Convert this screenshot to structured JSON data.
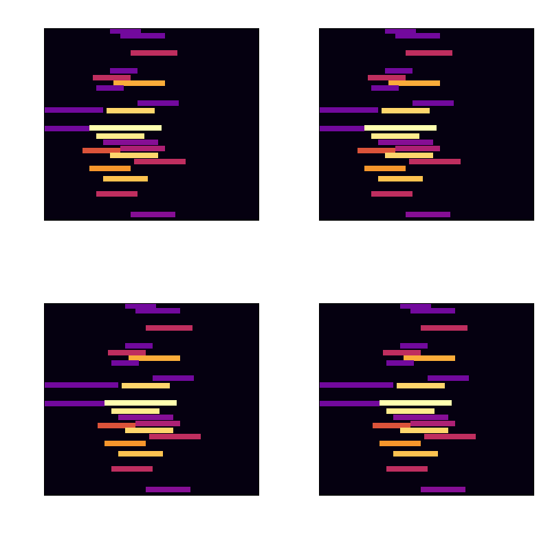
{
  "chart_data": [
    {
      "type": "heatmap",
      "xlim": [
        0,
        312
      ],
      "ylim": [
        0,
        279
      ],
      "tick_labels": false,
      "zlim": [
        0,
        1
      ],
      "cells": [
        {
          "x1": 96,
          "x2": 141,
          "y1": 0,
          "y2": 8,
          "value": 0.3
        },
        {
          "x1": 111,
          "x2": 176,
          "y1": 7,
          "y2": 15,
          "value": 0.3
        },
        {
          "x1": 126,
          "x2": 194,
          "y1": 32,
          "y2": 40,
          "value": 0.5
        },
        {
          "x1": 96,
          "x2": 136,
          "y1": 58,
          "y2": 66,
          "value": 0.3
        },
        {
          "x1": 71,
          "x2": 126,
          "y1": 68,
          "y2": 76,
          "value": 0.5
        },
        {
          "x1": 101,
          "x2": 176,
          "y1": 76,
          "y2": 84,
          "value": 0.8
        },
        {
          "x1": 76,
          "x2": 116,
          "y1": 83,
          "y2": 91,
          "value": 0.3
        },
        {
          "x1": 136,
          "x2": 196,
          "y1": 105,
          "y2": 113,
          "value": 0.3
        },
        {
          "x1": 0,
          "x2": 86,
          "y1": 115,
          "y2": 123,
          "value": 0.3
        },
        {
          "x1": 91,
          "x2": 161,
          "y1": 116,
          "y2": 124,
          "value": 0.9
        },
        {
          "x1": 66,
          "x2": 171,
          "y1": 141,
          "y2": 149,
          "value": 1
        },
        {
          "x1": 0,
          "x2": 66,
          "y1": 142,
          "y2": 150,
          "value": 0.3
        },
        {
          "x1": 76,
          "x2": 146,
          "y1": 153,
          "y2": 161,
          "value": 0.95
        },
        {
          "x1": 86,
          "x2": 166,
          "y1": 162,
          "y2": 170,
          "value": 0.35
        },
        {
          "x1": 111,
          "x2": 176,
          "y1": 171,
          "y2": 179,
          "value": 0.45
        },
        {
          "x1": 56,
          "x2": 111,
          "y1": 174,
          "y2": 182,
          "value": 0.6
        },
        {
          "x1": 96,
          "x2": 166,
          "y1": 181,
          "y2": 189,
          "value": 0.9
        },
        {
          "x1": 131,
          "x2": 206,
          "y1": 190,
          "y2": 198,
          "value": 0.5
        },
        {
          "x1": 66,
          "x2": 126,
          "y1": 200,
          "y2": 208,
          "value": 0.75
        },
        {
          "x1": 86,
          "x2": 151,
          "y1": 215,
          "y2": 223,
          "value": 0.85
        },
        {
          "x1": 76,
          "x2": 136,
          "y1": 237,
          "y2": 245,
          "value": 0.5
        },
        {
          "x1": 126,
          "x2": 191,
          "y1": 267,
          "y2": 275,
          "value": 0.35
        }
      ]
    },
    {
      "type": "heatmap",
      "xlim": [
        0,
        312
      ],
      "ylim": [
        0,
        279
      ],
      "tick_labels": false,
      "zlim": [
        0,
        1
      ],
      "cells": [
        {
          "x1": 96,
          "x2": 141,
          "y1": 0,
          "y2": 8,
          "value": 0.3
        },
        {
          "x1": 111,
          "x2": 176,
          "y1": 7,
          "y2": 15,
          "value": 0.3
        },
        {
          "x1": 126,
          "x2": 194,
          "y1": 32,
          "y2": 40,
          "value": 0.5
        },
        {
          "x1": 96,
          "x2": 136,
          "y1": 58,
          "y2": 66,
          "value": 0.3
        },
        {
          "x1": 71,
          "x2": 126,
          "y1": 68,
          "y2": 76,
          "value": 0.5
        },
        {
          "x1": 101,
          "x2": 176,
          "y1": 76,
          "y2": 84,
          "value": 0.8
        },
        {
          "x1": 76,
          "x2": 116,
          "y1": 83,
          "y2": 91,
          "value": 0.3
        },
        {
          "x1": 136,
          "x2": 196,
          "y1": 105,
          "y2": 113,
          "value": 0.3
        },
        {
          "x1": 0,
          "x2": 86,
          "y1": 115,
          "y2": 123,
          "value": 0.3
        },
        {
          "x1": 91,
          "x2": 161,
          "y1": 116,
          "y2": 124,
          "value": 0.9
        },
        {
          "x1": 66,
          "x2": 171,
          "y1": 141,
          "y2": 149,
          "value": 1
        },
        {
          "x1": 0,
          "x2": 66,
          "y1": 142,
          "y2": 150,
          "value": 0.3
        },
        {
          "x1": 76,
          "x2": 146,
          "y1": 153,
          "y2": 161,
          "value": 0.95
        },
        {
          "x1": 86,
          "x2": 166,
          "y1": 162,
          "y2": 170,
          "value": 0.35
        },
        {
          "x1": 111,
          "x2": 176,
          "y1": 171,
          "y2": 179,
          "value": 0.45
        },
        {
          "x1": 56,
          "x2": 111,
          "y1": 174,
          "y2": 182,
          "value": 0.6
        },
        {
          "x1": 96,
          "x2": 166,
          "y1": 181,
          "y2": 189,
          "value": 0.9
        },
        {
          "x1": 131,
          "x2": 206,
          "y1": 190,
          "y2": 198,
          "value": 0.5
        },
        {
          "x1": 66,
          "x2": 126,
          "y1": 200,
          "y2": 208,
          "value": 0.75
        },
        {
          "x1": 86,
          "x2": 151,
          "y1": 215,
          "y2": 223,
          "value": 0.85
        },
        {
          "x1": 76,
          "x2": 136,
          "y1": 237,
          "y2": 245,
          "value": 0.5
        },
        {
          "x1": 126,
          "x2": 191,
          "y1": 267,
          "y2": 275,
          "value": 0.35
        }
      ]
    },
    {
      "type": "heatmap",
      "xlim": [
        0,
        312
      ],
      "ylim": [
        0,
        279
      ],
      "tick_labels": false,
      "zlim": [
        0,
        1
      ],
      "cells": [
        {
          "x1": 118,
          "x2": 163,
          "y1": 0,
          "y2": 8,
          "value": 0.3
        },
        {
          "x1": 133,
          "x2": 198,
          "y1": 7,
          "y2": 15,
          "value": 0.3
        },
        {
          "x1": 148,
          "x2": 216,
          "y1": 32,
          "y2": 40,
          "value": 0.5
        },
        {
          "x1": 118,
          "x2": 158,
          "y1": 58,
          "y2": 66,
          "value": 0.3
        },
        {
          "x1": 93,
          "x2": 148,
          "y1": 68,
          "y2": 76,
          "value": 0.5
        },
        {
          "x1": 123,
          "x2": 198,
          "y1": 76,
          "y2": 84,
          "value": 0.8
        },
        {
          "x1": 98,
          "x2": 138,
          "y1": 83,
          "y2": 91,
          "value": 0.3
        },
        {
          "x1": 158,
          "x2": 218,
          "y1": 105,
          "y2": 113,
          "value": 0.3
        },
        {
          "x1": 0,
          "x2": 108,
          "y1": 115,
          "y2": 123,
          "value": 0.3
        },
        {
          "x1": 113,
          "x2": 183,
          "y1": 116,
          "y2": 124,
          "value": 0.9
        },
        {
          "x1": 88,
          "x2": 193,
          "y1": 141,
          "y2": 149,
          "value": 1
        },
        {
          "x1": 0,
          "x2": 88,
          "y1": 142,
          "y2": 150,
          "value": 0.3
        },
        {
          "x1": 98,
          "x2": 168,
          "y1": 153,
          "y2": 161,
          "value": 0.95
        },
        {
          "x1": 108,
          "x2": 188,
          "y1": 162,
          "y2": 170,
          "value": 0.35
        },
        {
          "x1": 133,
          "x2": 198,
          "y1": 171,
          "y2": 179,
          "value": 0.45
        },
        {
          "x1": 78,
          "x2": 133,
          "y1": 174,
          "y2": 182,
          "value": 0.6
        },
        {
          "x1": 118,
          "x2": 188,
          "y1": 181,
          "y2": 189,
          "value": 0.9
        },
        {
          "x1": 153,
          "x2": 228,
          "y1": 190,
          "y2": 198,
          "value": 0.5
        },
        {
          "x1": 88,
          "x2": 148,
          "y1": 200,
          "y2": 208,
          "value": 0.75
        },
        {
          "x1": 108,
          "x2": 173,
          "y1": 215,
          "y2": 223,
          "value": 0.85
        },
        {
          "x1": 98,
          "x2": 158,
          "y1": 237,
          "y2": 245,
          "value": 0.5
        },
        {
          "x1": 148,
          "x2": 213,
          "y1": 267,
          "y2": 275,
          "value": 0.35
        }
      ]
    },
    {
      "type": "heatmap",
      "xlim": [
        0,
        312
      ],
      "ylim": [
        0,
        279
      ],
      "tick_labels": false,
      "zlim": [
        0,
        1
      ],
      "cells": [
        {
          "x1": 118,
          "x2": 163,
          "y1": 0,
          "y2": 8,
          "value": 0.3
        },
        {
          "x1": 133,
          "x2": 198,
          "y1": 7,
          "y2": 15,
          "value": 0.3
        },
        {
          "x1": 148,
          "x2": 216,
          "y1": 32,
          "y2": 40,
          "value": 0.5
        },
        {
          "x1": 118,
          "x2": 158,
          "y1": 58,
          "y2": 66,
          "value": 0.3
        },
        {
          "x1": 93,
          "x2": 148,
          "y1": 68,
          "y2": 76,
          "value": 0.5
        },
        {
          "x1": 123,
          "x2": 198,
          "y1": 76,
          "y2": 84,
          "value": 0.8
        },
        {
          "x1": 98,
          "x2": 138,
          "y1": 83,
          "y2": 91,
          "value": 0.3
        },
        {
          "x1": 158,
          "x2": 218,
          "y1": 105,
          "y2": 113,
          "value": 0.3
        },
        {
          "x1": 0,
          "x2": 108,
          "y1": 115,
          "y2": 123,
          "value": 0.3
        },
        {
          "x1": 113,
          "x2": 183,
          "y1": 116,
          "y2": 124,
          "value": 0.9
        },
        {
          "x1": 88,
          "x2": 193,
          "y1": 141,
          "y2": 149,
          "value": 1
        },
        {
          "x1": 0,
          "x2": 88,
          "y1": 142,
          "y2": 150,
          "value": 0.3
        },
        {
          "x1": 98,
          "x2": 168,
          "y1": 153,
          "y2": 161,
          "value": 0.95
        },
        {
          "x1": 108,
          "x2": 188,
          "y1": 162,
          "y2": 170,
          "value": 0.35
        },
        {
          "x1": 133,
          "x2": 198,
          "y1": 171,
          "y2": 179,
          "value": 0.45
        },
        {
          "x1": 78,
          "x2": 133,
          "y1": 174,
          "y2": 182,
          "value": 0.6
        },
        {
          "x1": 118,
          "x2": 188,
          "y1": 181,
          "y2": 189,
          "value": 0.9
        },
        {
          "x1": 153,
          "x2": 228,
          "y1": 190,
          "y2": 198,
          "value": 0.5
        },
        {
          "x1": 88,
          "x2": 148,
          "y1": 200,
          "y2": 208,
          "value": 0.75
        },
        {
          "x1": 108,
          "x2": 173,
          "y1": 215,
          "y2": 223,
          "value": 0.85
        },
        {
          "x1": 98,
          "x2": 158,
          "y1": 237,
          "y2": 245,
          "value": 0.5
        },
        {
          "x1": 148,
          "x2": 213,
          "y1": 267,
          "y2": 275,
          "value": 0.35
        }
      ]
    }
  ]
}
